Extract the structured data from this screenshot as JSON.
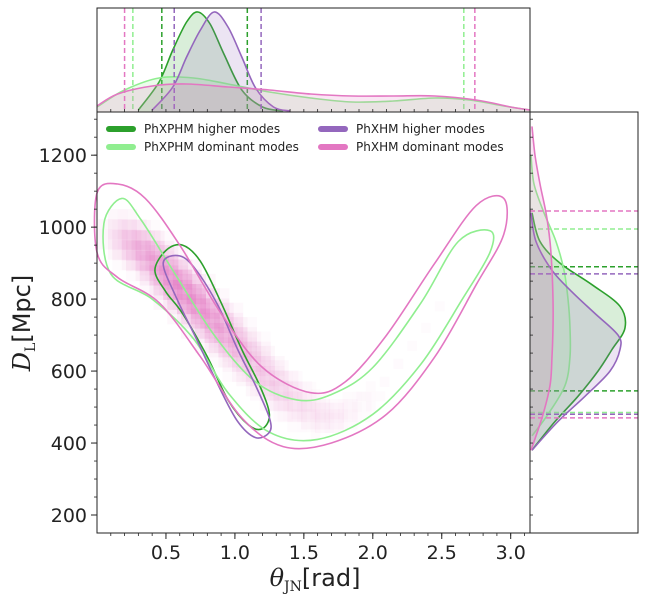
{
  "chart_data": {
    "type": "scatter",
    "subtype": "corner-plot (2D posterior density with marginal distributions)",
    "xlabel": "θ_JN [rad]",
    "ylabel": "D_L [Mpc]",
    "xlabel_sym": "θ",
    "xlabel_sub": "JN",
    "xlabel_unit": "[rad]",
    "ylabel_sym": "D",
    "ylabel_sub": "L",
    "ylabel_unit": "[Mpc]",
    "xlim": [
      0.0,
      3.14
    ],
    "ylim": [
      150,
      1320
    ],
    "xticks": [
      0.5,
      1.0,
      1.5,
      2.0,
      2.5,
      3.0
    ],
    "xtick_labels": [
      "0.5",
      "1.0",
      "1.5",
      "2.0",
      "2.5",
      "3.0"
    ],
    "yticks": [
      200,
      400,
      600,
      800,
      1000,
      1200
    ],
    "ytick_labels": [
      "200",
      "400",
      "600",
      "800",
      "1000",
      "1200"
    ],
    "legend_position": "top-left",
    "series": [
      {
        "name": "PhXPHM higher modes",
        "color": "#2ca02c",
        "fill": true,
        "theta_interval": [
          0.47,
          1.09
        ],
        "dl_interval": [
          545,
          890
        ],
        "contour": [
          [
            0.42,
            880
          ],
          [
            0.5,
            935
          ],
          [
            0.62,
            950
          ],
          [
            0.75,
            905
          ],
          [
            0.9,
            790
          ],
          [
            1.05,
            660
          ],
          [
            1.18,
            560
          ],
          [
            1.25,
            480
          ],
          [
            1.2,
            440
          ],
          [
            1.1,
            450
          ],
          [
            0.95,
            520
          ],
          [
            0.8,
            640
          ],
          [
            0.62,
            760
          ],
          [
            0.5,
            820
          ]
        ],
        "theta_marginal": [
          [
            0.3,
            0.02
          ],
          [
            0.45,
            0.3
          ],
          [
            0.55,
            0.62
          ],
          [
            0.65,
            0.9
          ],
          [
            0.73,
            1.0
          ],
          [
            0.82,
            0.88
          ],
          [
            0.92,
            0.58
          ],
          [
            1.05,
            0.22
          ],
          [
            1.2,
            0.05
          ],
          [
            1.35,
            0.01
          ]
        ],
        "dl_marginal": [
          [
            380,
            0.02
          ],
          [
            460,
            0.25
          ],
          [
            530,
            0.48
          ],
          [
            600,
            0.68
          ],
          [
            660,
            0.82
          ],
          [
            720,
            0.95
          ],
          [
            780,
            0.9
          ],
          [
            840,
            0.62
          ],
          [
            900,
            0.3
          ],
          [
            960,
            0.1
          ],
          [
            1040,
            0.02
          ]
        ]
      },
      {
        "name": "PhXPHM dominant modes",
        "color": "#90ee90",
        "fill": true,
        "theta_interval": [
          0.26,
          2.66
        ],
        "dl_interval": [
          485,
          995
        ],
        "contour": [
          [
            0.05,
            1010
          ],
          [
            0.18,
            1080
          ],
          [
            0.32,
            1020
          ],
          [
            0.55,
            880
          ],
          [
            0.85,
            700
          ],
          [
            1.15,
            570
          ],
          [
            1.45,
            520
          ],
          [
            1.7,
            535
          ],
          [
            2.0,
            610
          ],
          [
            2.35,
            790
          ],
          [
            2.62,
            960
          ],
          [
            2.85,
            990
          ],
          [
            2.85,
            930
          ],
          [
            2.65,
            800
          ],
          [
            2.35,
            620
          ],
          [
            2.0,
            480
          ],
          [
            1.6,
            410
          ],
          [
            1.25,
            430
          ],
          [
            0.95,
            540
          ],
          [
            0.7,
            690
          ],
          [
            0.4,
            800
          ],
          [
            0.1,
            870
          ]
        ],
        "theta_marginal": [
          [
            0.0,
            0.05
          ],
          [
            0.2,
            0.22
          ],
          [
            0.45,
            0.34
          ],
          [
            0.7,
            0.34
          ],
          [
            0.95,
            0.28
          ],
          [
            1.25,
            0.2
          ],
          [
            1.55,
            0.14
          ],
          [
            1.85,
            0.1
          ],
          [
            2.15,
            0.11
          ],
          [
            2.45,
            0.14
          ],
          [
            2.7,
            0.12
          ],
          [
            2.95,
            0.06
          ],
          [
            3.14,
            0.02
          ]
        ],
        "dl_marginal": [
          [
            420,
            0.02
          ],
          [
            480,
            0.18
          ],
          [
            560,
            0.35
          ],
          [
            640,
            0.4
          ],
          [
            720,
            0.4
          ],
          [
            800,
            0.38
          ],
          [
            880,
            0.34
          ],
          [
            960,
            0.26
          ],
          [
            1040,
            0.14
          ],
          [
            1120,
            0.04
          ],
          [
            1200,
            0.01
          ]
        ]
      },
      {
        "name": "PhXHM higher modes",
        "color": "#9467bd",
        "fill": true,
        "theta_interval": [
          0.56,
          1.19
        ],
        "dl_interval": [
          480,
          870
        ],
        "contour": [
          [
            0.48,
            900
          ],
          [
            0.6,
            920
          ],
          [
            0.72,
            880
          ],
          [
            0.88,
            780
          ],
          [
            1.02,
            660
          ],
          [
            1.15,
            560
          ],
          [
            1.25,
            470
          ],
          [
            1.25,
            430
          ],
          [
            1.15,
            415
          ],
          [
            1.02,
            460
          ],
          [
            0.88,
            560
          ],
          [
            0.72,
            690
          ],
          [
            0.58,
            800
          ]
        ],
        "theta_marginal": [
          [
            0.4,
            0.02
          ],
          [
            0.55,
            0.25
          ],
          [
            0.65,
            0.55
          ],
          [
            0.75,
            0.82
          ],
          [
            0.85,
            1.0
          ],
          [
            0.95,
            0.85
          ],
          [
            1.05,
            0.55
          ],
          [
            1.15,
            0.24
          ],
          [
            1.28,
            0.05
          ],
          [
            1.4,
            0.01
          ]
        ],
        "dl_marginal": [
          [
            380,
            0.02
          ],
          [
            460,
            0.28
          ],
          [
            530,
            0.55
          ],
          [
            600,
            0.8
          ],
          [
            660,
            0.9
          ],
          [
            700,
            0.88
          ],
          [
            760,
            0.65
          ],
          [
            820,
            0.42
          ],
          [
            880,
            0.22
          ],
          [
            960,
            0.06
          ],
          [
            1040,
            0.01
          ]
        ]
      },
      {
        "name": "PhXHM dominant modes",
        "color": "#e377c2",
        "fill": true,
        "theta_interval": [
          0.2,
          2.74
        ],
        "dl_interval": [
          470,
          1045
        ],
        "contour": [
          [
            0.0,
            1095
          ],
          [
            0.15,
            1120
          ],
          [
            0.35,
            1080
          ],
          [
            0.6,
            950
          ],
          [
            0.9,
            760
          ],
          [
            1.2,
            610
          ],
          [
            1.55,
            540
          ],
          [
            1.8,
            570
          ],
          [
            2.1,
            700
          ],
          [
            2.45,
            900
          ],
          [
            2.75,
            1060
          ],
          [
            2.95,
            1080
          ],
          [
            2.95,
            980
          ],
          [
            2.75,
            840
          ],
          [
            2.45,
            640
          ],
          [
            2.1,
            480
          ],
          [
            1.7,
            400
          ],
          [
            1.35,
            390
          ],
          [
            1.05,
            470
          ],
          [
            0.75,
            640
          ],
          [
            0.45,
            790
          ],
          [
            0.15,
            860
          ],
          [
            0.0,
            930
          ]
        ],
        "theta_marginal": [
          [
            0.0,
            0.06
          ],
          [
            0.15,
            0.18
          ],
          [
            0.4,
            0.26
          ],
          [
            0.65,
            0.28
          ],
          [
            0.95,
            0.25
          ],
          [
            1.25,
            0.22
          ],
          [
            1.55,
            0.18
          ],
          [
            1.85,
            0.16
          ],
          [
            2.15,
            0.16
          ],
          [
            2.45,
            0.16
          ],
          [
            2.75,
            0.12
          ],
          [
            3.0,
            0.05
          ],
          [
            3.14,
            0.02
          ]
        ],
        "dl_marginal": [
          [
            380,
            0.01
          ],
          [
            470,
            0.12
          ],
          [
            560,
            0.2
          ],
          [
            640,
            0.22
          ],
          [
            720,
            0.23
          ],
          [
            800,
            0.23
          ],
          [
            880,
            0.22
          ],
          [
            960,
            0.2
          ],
          [
            1040,
            0.16
          ],
          [
            1120,
            0.1
          ],
          [
            1200,
            0.05
          ],
          [
            1280,
            0.02
          ]
        ]
      }
    ],
    "heatmap": {
      "color": "#e377c2",
      "description_points": [
        [
          0.15,
          980,
          0.35
        ],
        [
          0.25,
          950,
          0.55
        ],
        [
          0.35,
          920,
          0.7
        ],
        [
          0.45,
          880,
          0.85
        ],
        [
          0.55,
          840,
          1.0
        ],
        [
          0.65,
          800,
          0.95
        ],
        [
          0.75,
          760,
          0.85
        ],
        [
          0.85,
          720,
          0.75
        ],
        [
          0.95,
          680,
          0.6
        ],
        [
          1.05,
          640,
          0.5
        ],
        [
          1.15,
          600,
          0.4
        ],
        [
          1.25,
          560,
          0.32
        ],
        [
          1.35,
          530,
          0.25
        ],
        [
          1.45,
          500,
          0.2
        ],
        [
          1.55,
          480,
          0.16
        ],
        [
          1.65,
          470,
          0.13
        ],
        [
          1.75,
          480,
          0.1
        ],
        [
          1.85,
          500,
          0.08
        ],
        [
          1.95,
          530,
          0.06
        ],
        [
          2.05,
          570,
          0.05
        ],
        [
          2.15,
          620,
          0.05
        ],
        [
          2.25,
          670,
          0.04
        ],
        [
          2.35,
          720,
          0.04
        ],
        [
          2.45,
          780,
          0.04
        ],
        [
          2.55,
          840,
          0.03
        ],
        [
          2.65,
          900,
          0.03
        ],
        [
          2.75,
          950,
          0.02
        ]
      ]
    }
  }
}
